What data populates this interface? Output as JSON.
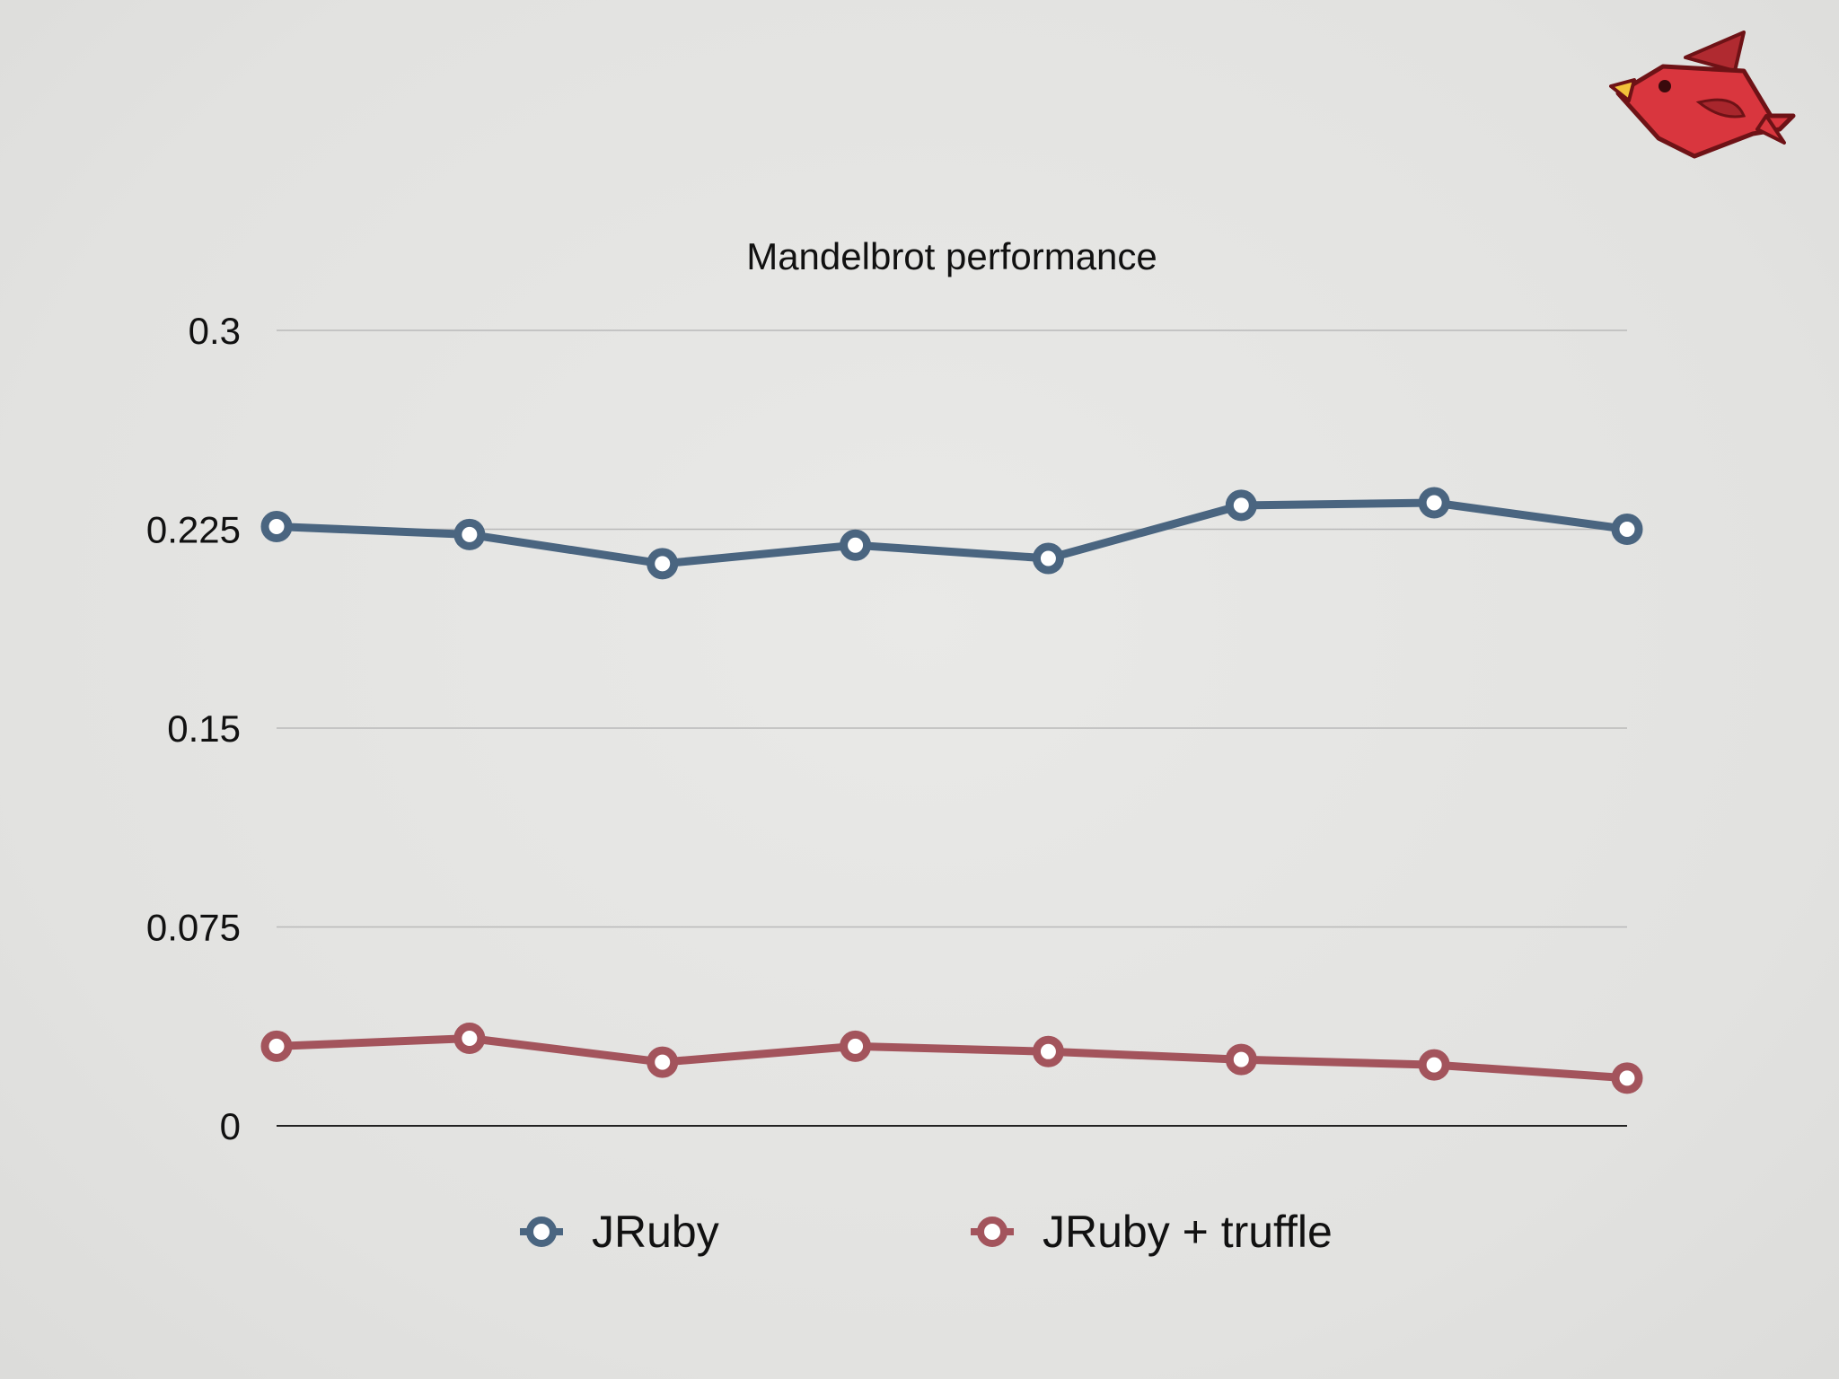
{
  "chart_data": {
    "type": "line",
    "title": "Mandelbrot performance",
    "xlabel": "",
    "ylabel": "",
    "ylim": [
      0,
      0.3
    ],
    "y_ticks": [
      "0",
      "0.075",
      "0.15",
      "0.225",
      "0.3"
    ],
    "y_tick_values": [
      0,
      0.075,
      0.15,
      0.225,
      0.3
    ],
    "x": [
      1,
      2,
      3,
      4,
      5,
      6,
      7,
      8
    ],
    "grid": true,
    "legend_position": "bottom",
    "series": [
      {
        "name": "JRuby",
        "color": "#4a6580",
        "values": [
          0.226,
          0.223,
          0.212,
          0.219,
          0.214,
          0.234,
          0.235,
          0.225
        ]
      },
      {
        "name": "JRuby + truffle",
        "color": "#a3545c",
        "values": [
          0.03,
          0.033,
          0.024,
          0.03,
          0.028,
          0.025,
          0.023,
          0.018
        ]
      }
    ]
  },
  "logo": {
    "icon": "cardinal-bird-icon",
    "color": "#d9363e"
  }
}
